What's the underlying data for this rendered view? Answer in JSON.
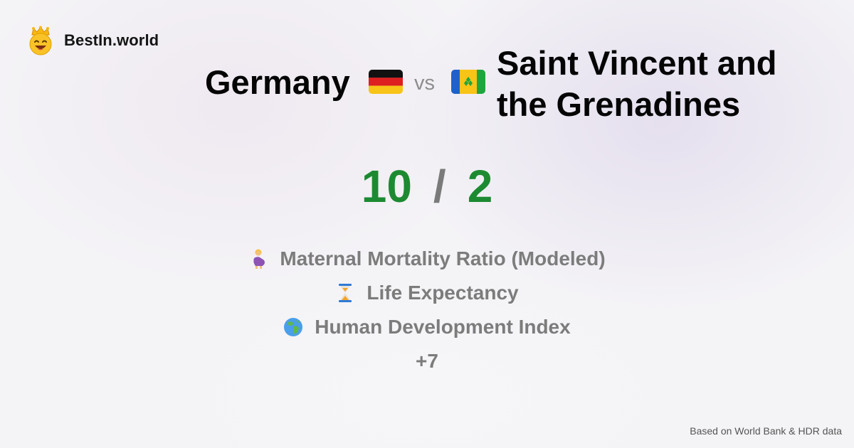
{
  "brand": {
    "name": "BestIn.world",
    "logo_icon": "crowned-smiley-icon"
  },
  "comparison": {
    "country_a": {
      "name": "Germany",
      "flag_icon": "germany-flag-icon",
      "score": "10"
    },
    "vs_label": "vs",
    "country_b": {
      "name": "Saint Vincent and the Grenadines",
      "flag_icon": "saint-vincent-flag-icon",
      "score": "2"
    },
    "score_separator": "/"
  },
  "metrics": [
    {
      "label": "Maternal Mortality Ratio (Modeled)",
      "icon": "pregnant-woman-icon"
    },
    {
      "label": "Life Expectancy",
      "icon": "hourglass-icon"
    },
    {
      "label": "Human Development Index",
      "icon": "globe-icon"
    }
  ],
  "more_label": "+7",
  "footer": {
    "source": "Based on World Bank & HDR data"
  },
  "colors": {
    "score": "#1d8a32",
    "muted_text": "#7c7c7c",
    "title_text": "#050505",
    "background": "#f4f3f6"
  }
}
